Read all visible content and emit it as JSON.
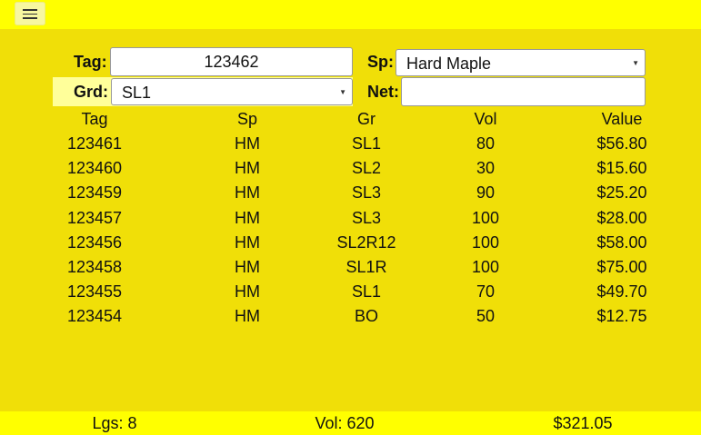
{
  "form": {
    "tag_label": "Tag:",
    "tag_value": "123462",
    "sp_label": "Sp:",
    "sp_value": "Hard Maple",
    "grd_label": "Grd:",
    "grd_value": "SL1",
    "net_label": "Net:",
    "net_value": ""
  },
  "table": {
    "headers": [
      "Tag",
      "Sp",
      "Gr",
      "Vol",
      "Value"
    ],
    "rows": [
      [
        "123461",
        "HM",
        "SL1",
        "80",
        "$56.80"
      ],
      [
        "123460",
        "HM",
        "SL2",
        "30",
        "$15.60"
      ],
      [
        "123459",
        "HM",
        "SL3",
        "90",
        "$25.20"
      ],
      [
        "123457",
        "HM",
        "SL3",
        "100",
        "$28.00"
      ],
      [
        "123456",
        "HM",
        "SL2R12",
        "100",
        "$58.00"
      ],
      [
        "123458",
        "HM",
        "SL1R",
        "100",
        "$75.00"
      ],
      [
        "123455",
        "HM",
        "SL1",
        "70",
        "$49.70"
      ],
      [
        "123454",
        "HM",
        "BO",
        "50",
        "$12.75"
      ]
    ]
  },
  "summary": {
    "logs": "Lgs: 8",
    "volume": "Vol: 620",
    "total": "$321.05"
  },
  "icons": {
    "menu": "hamburger-menu-icon",
    "dropdown": "dropdown-arrow-icon"
  },
  "colors": {
    "background": "#f0df08",
    "bars": "#ffff00",
    "highlight": "#ffff9a"
  }
}
